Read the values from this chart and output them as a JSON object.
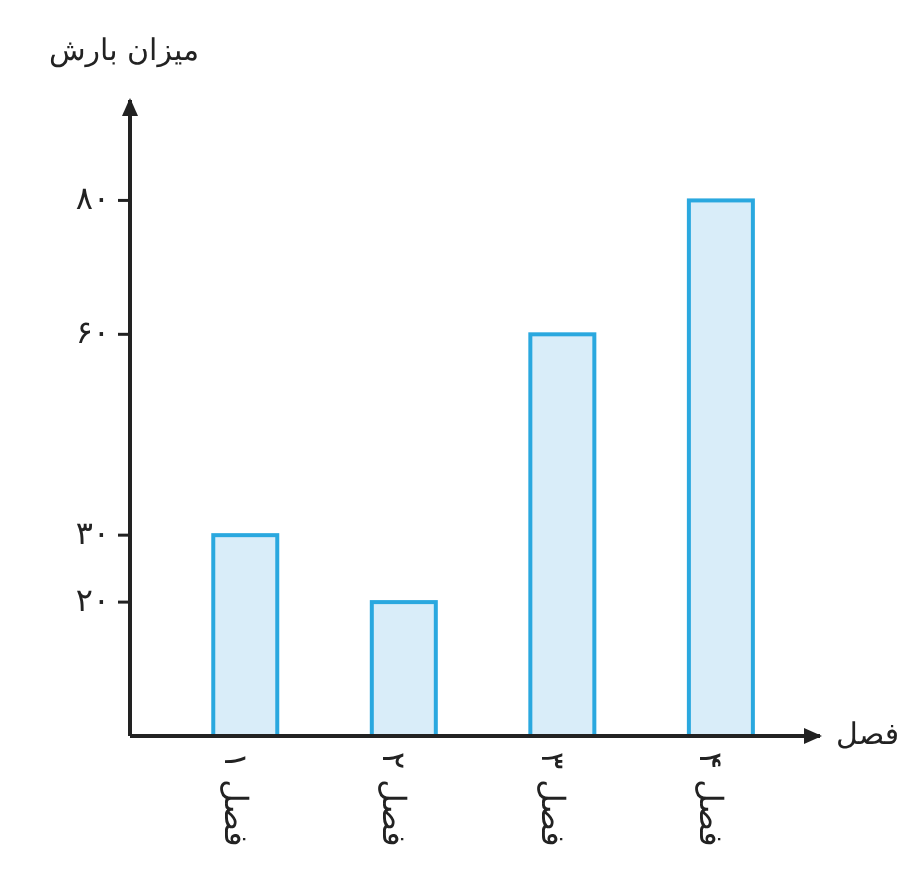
{
  "chart_data": {
    "type": "bar",
    "ylabel": "میزان بارش",
    "xlabel": "فصل",
    "categories": [
      "فصل ۱",
      "فصل ۲",
      "فصل ۳",
      "فصل ۴"
    ],
    "values": [
      30,
      20,
      60,
      80
    ],
    "color": "#d9edf9",
    "ylim": [
      0,
      95
    ],
    "yticks": [
      {
        "value": 20,
        "label": "۲۰"
      },
      {
        "value": 30,
        "label": "۳۰"
      },
      {
        "value": 60,
        "label": "۶۰"
      },
      {
        "value": 80,
        "label": "۸۰"
      }
    ]
  }
}
